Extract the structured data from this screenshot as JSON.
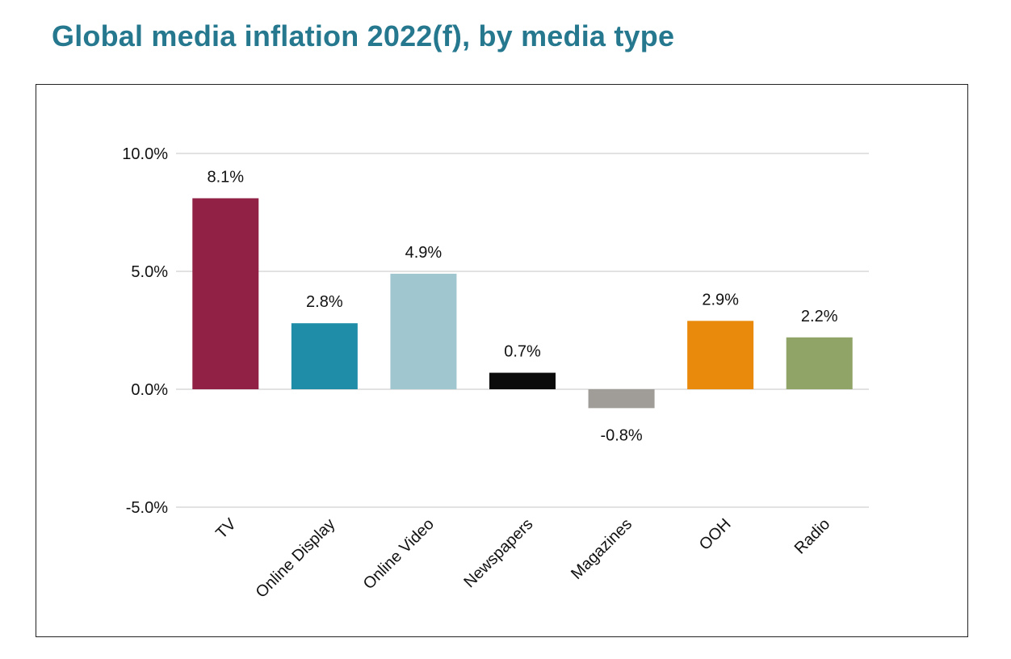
{
  "title": "Global media inflation 2022(f), by media type",
  "chart_data": {
    "type": "bar",
    "title": "Global media inflation 2022(f), by media type",
    "xlabel": "",
    "ylabel": "",
    "ylim": [
      -5.0,
      10.0
    ],
    "yticks": [
      10.0,
      5.0,
      0.0,
      -5.0
    ],
    "ytick_labels": [
      "10.0%",
      "5.0%",
      "0.0%",
      "-5.0%"
    ],
    "grid": true,
    "categories": [
      "TV",
      "Online Display",
      "Online Video",
      "Newspapers",
      "Magazines",
      "OOH",
      "Radio"
    ],
    "values": [
      8.1,
      2.8,
      4.9,
      0.7,
      -0.8,
      2.9,
      2.2
    ],
    "data_labels": [
      "8.1%",
      "2.8%",
      "4.9%",
      "0.7%",
      "-0.8%",
      "2.9%",
      "2.2%"
    ],
    "colors": [
      "#912246",
      "#1f8ca8",
      "#a0c6cf",
      "#0b0b0b",
      "#a09d99",
      "#e98a0c",
      "#8fa466"
    ]
  }
}
